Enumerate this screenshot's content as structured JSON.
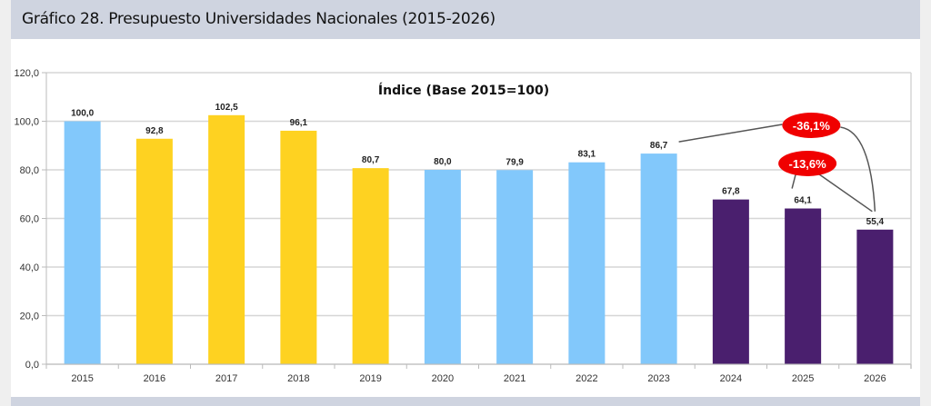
{
  "header": {
    "title": "Gráfico 28. Presupuesto Universidades Nacionales (2015-2026)"
  },
  "chart_data": {
    "type": "bar",
    "title": "Índice (Base 2015=100)",
    "xlabel": "",
    "ylabel": "",
    "ylim": [
      0,
      120
    ],
    "yticks": [
      "0,0",
      "20,0",
      "40,0",
      "60,0",
      "80,0",
      "100,0",
      "120,0"
    ],
    "ytick_values": [
      0,
      20,
      40,
      60,
      80,
      100,
      120
    ],
    "grid": true,
    "categories": [
      "2015",
      "2016",
      "2017",
      "2018",
      "2019",
      "2020",
      "2021",
      "2022",
      "2023",
      "2024",
      "2025",
      "2026"
    ],
    "values": [
      100.0,
      92.8,
      102.5,
      96.1,
      80.7,
      80.0,
      79.9,
      83.1,
      86.7,
      67.8,
      64.1,
      55.4
    ],
    "value_labels": [
      "100,0",
      "92,8",
      "102,5",
      "96,1",
      "80,7",
      "80,0",
      "79,9",
      "83,1",
      "86,7",
      "67,8",
      "64,1",
      "55,4"
    ],
    "bar_colors": [
      "#82c8fb",
      "#fed221",
      "#fed221",
      "#fed221",
      "#fed221",
      "#82c8fb",
      "#82c8fb",
      "#82c8fb",
      "#82c8fb",
      "#4a1f6e",
      "#4a1f6e",
      "#4a1f6e"
    ],
    "annotations": [
      {
        "text": "-36,1%",
        "from": "2023",
        "to": "2026",
        "color": "#f00000"
      },
      {
        "text": "-13,6%",
        "from": "2025",
        "to": "2026",
        "color": "#f00000"
      }
    ]
  }
}
